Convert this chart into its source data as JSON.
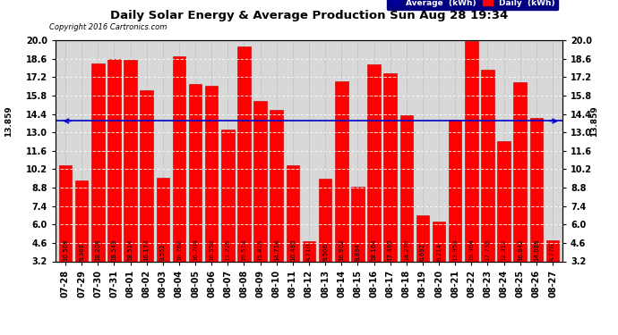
{
  "title": "Daily Solar Energy & Average Production Sun Aug 28 19:34",
  "copyright": "Copyright 2016 Cartronics.com",
  "average": 13.859,
  "categories": [
    "07-28",
    "07-29",
    "07-30",
    "07-31",
    "08-01",
    "08-02",
    "08-03",
    "08-04",
    "08-05",
    "08-06",
    "08-07",
    "08-08",
    "08-09",
    "08-10",
    "08-11",
    "08-12",
    "08-13",
    "08-14",
    "08-15",
    "08-16",
    "08-17",
    "08-18",
    "08-19",
    "08-20",
    "08-21",
    "08-22",
    "08-23",
    "08-24",
    "08-25",
    "08-26",
    "08-27"
  ],
  "values": [
    10.508,
    9.368,
    18.208,
    18.548,
    18.514,
    16.174,
    9.552,
    18.768,
    16.704,
    16.556,
    13.228,
    19.514,
    15.418,
    14.716,
    10.48,
    4.71,
    9.506,
    16.902,
    8.894,
    18.164,
    17.49,
    14.27,
    6.692,
    6.214,
    13.954,
    19.964,
    17.738,
    12.312,
    16.842,
    14.088,
    4.778
  ],
  "bar_color": "#ff0000",
  "bar_edge_color": "#bb0000",
  "average_line_color": "#0000cc",
  "bg_color": "#ffffff",
  "plot_bg_color": "#d8d8d8",
  "grid_color": "#888888",
  "ylim": [
    3.2,
    20.0
  ],
  "yticks": [
    3.2,
    4.6,
    6.0,
    7.4,
    8.8,
    10.2,
    11.6,
    13.0,
    14.4,
    15.8,
    17.2,
    18.6,
    20.0
  ],
  "legend_avg_color": "#000099",
  "legend_daily_color": "#ff0000",
  "left_avg_label": "13.859",
  "right_avg_label": "13.859",
  "title_fontsize": 9.5,
  "copyright_fontsize": 6,
  "tick_fontsize": 7,
  "bar_label_fontsize": 5
}
